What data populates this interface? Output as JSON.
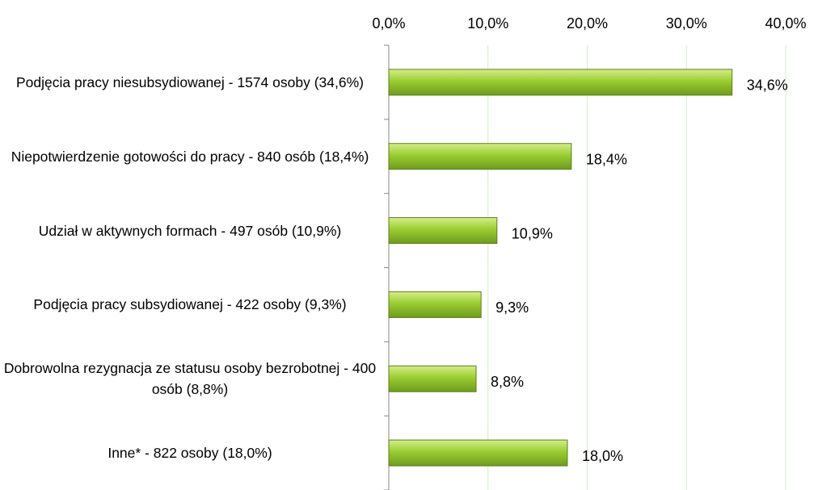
{
  "chart_data": {
    "type": "bar",
    "orientation": "horizontal",
    "categories": [
      "Podjęcia pracy niesubsydiowanej - 1574 osoby (34,6%)",
      "Niepotwierdzenie gotowości do pracy - 840 osób (18,4%)",
      "Udział w aktywnych formach - 497 osób (10,9%)",
      "Podjęcia pracy subsydiowanej - 422 osoby (9,3%)",
      "Dobrowolna rezygnacja ze statusu osoby bezrobotnej - 400 osób (8,8%)",
      "Inne* - 822 osoby (18,0%)"
    ],
    "values": [
      34.6,
      18.4,
      10.9,
      9.3,
      8.8,
      18.0
    ],
    "value_labels": [
      "34,6%",
      "18,4%",
      "10,9%",
      "9,3%",
      "8,8%",
      "18,0%"
    ],
    "color": "#9acd32",
    "xlim": [
      0,
      40
    ],
    "xticks": [
      {
        "value": 0,
        "label": "0,0%"
      },
      {
        "value": 10,
        "label": "10,0%"
      },
      {
        "value": 20,
        "label": "20,0%"
      },
      {
        "value": 30,
        "label": "30,0%"
      },
      {
        "value": 40,
        "label": "40,0%"
      }
    ],
    "grid": true
  }
}
